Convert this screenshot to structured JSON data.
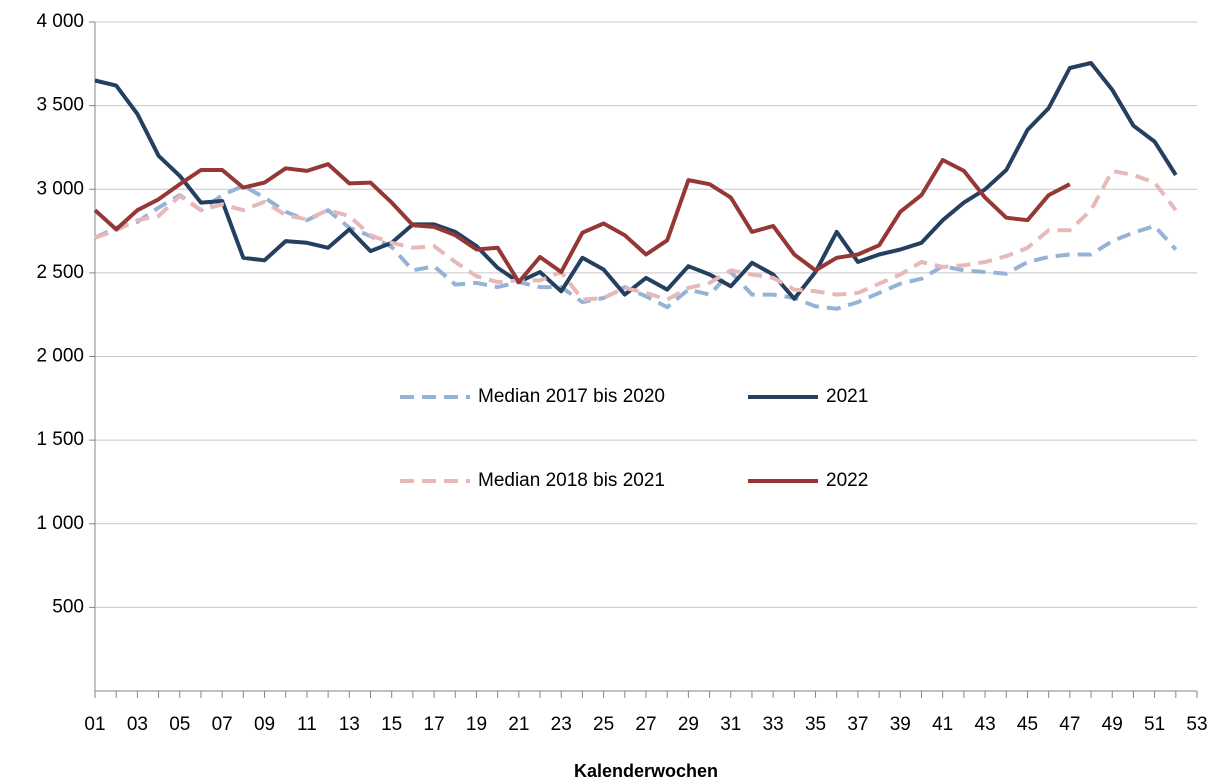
{
  "chart_data": {
    "type": "line",
    "x_label": "Kalenderwochen",
    "categories": [
      "01",
      null,
      "03",
      null,
      "05",
      null,
      "07",
      null,
      "09",
      null,
      "11",
      null,
      "13",
      null,
      "15",
      null,
      "17",
      null,
      "19",
      null,
      "21",
      null,
      "23",
      null,
      "25",
      null,
      "27",
      null,
      "29",
      null,
      "31",
      null,
      "33",
      null,
      "35",
      null,
      "37",
      null,
      "39",
      null,
      "41",
      null,
      "43",
      null,
      "45",
      null,
      "47",
      null,
      "49",
      null,
      "51",
      null,
      "53"
    ],
    "ylim": [
      0,
      4000
    ],
    "yticks": [
      500,
      {
        "value": 1000,
        "label": "1 000"
      },
      {
        "value": 1500,
        "label": "1 500"
      },
      {
        "value": 2000,
        "label": "2 000"
      },
      {
        "value": 2500,
        "label": "2 500"
      },
      {
        "value": 3000,
        "label": "3 000"
      },
      {
        "value": 3500,
        "label": "3 500"
      },
      {
        "value": 4000,
        "label": "4 000"
      }
    ],
    "grid": true,
    "legend": "center",
    "series": [
      {
        "name": "Median 2017 bis 2020",
        "color": "#95b3d7",
        "dashed": true,
        "values": [
          2710,
          2770,
          2805,
          2890,
          2965,
          2875,
          2965,
          3020,
          2950,
          2865,
          2815,
          2875,
          2770,
          2720,
          2655,
          2515,
          2540,
          2430,
          2440,
          2415,
          2445,
          2415,
          2415,
          2325,
          2350,
          2415,
          2360,
          2295,
          2400,
          2370,
          2505,
          2370,
          2370,
          2350,
          2300,
          2285,
          2325,
          2380,
          2435,
          2465,
          2540,
          2515,
          2505,
          2495,
          2565,
          2595,
          2610,
          2610,
          2690,
          2740,
          2780,
          2640,
          null
        ]
      },
      {
        "name": "2021",
        "color": "#243f60",
        "dashed": false,
        "values": [
          3650,
          3620,
          3450,
          3200,
          3080,
          2920,
          2930,
          2590,
          2575,
          2690,
          2680,
          2650,
          2760,
          2630,
          2680,
          2790,
          2790,
          2745,
          2660,
          2530,
          2445,
          2505,
          2390,
          2590,
          2520,
          2370,
          2470,
          2400,
          2540,
          2490,
          2420,
          2560,
          2490,
          2345,
          2505,
          2745,
          2565,
          2610,
          2640,
          2680,
          2815,
          2920,
          3000,
          3115,
          3355,
          3485,
          3725,
          3755,
          3595,
          3380,
          3285,
          3085,
          null
        ]
      },
      {
        "name": "Median 2018 bis 2021",
        "color": "#e6b9b8",
        "dashed": true,
        "values": [
          2710,
          2755,
          2815,
          2840,
          2960,
          2875,
          2910,
          2875,
          2925,
          2845,
          2820,
          2875,
          2840,
          2725,
          2680,
          2650,
          2660,
          2565,
          2480,
          2445,
          2455,
          2455,
          2505,
          2340,
          2350,
          2410,
          2380,
          2340,
          2410,
          2440,
          2515,
          2490,
          2470,
          2400,
          2390,
          2370,
          2380,
          2435,
          2490,
          2565,
          2535,
          2545,
          2565,
          2600,
          2650,
          2755,
          2755,
          2875,
          3110,
          3085,
          3040,
          2875,
          null
        ]
      },
      {
        "name": "2022",
        "color": "#953735",
        "dashed": false,
        "values": [
          2875,
          2760,
          2875,
          2940,
          3030,
          3115,
          3115,
          3010,
          3040,
          3125,
          3110,
          3150,
          3035,
          3040,
          2920,
          2785,
          2775,
          2725,
          2640,
          2650,
          2445,
          2595,
          2505,
          2740,
          2795,
          2725,
          2610,
          2695,
          3055,
          3030,
          2950,
          2745,
          2780,
          2610,
          2515,
          2590,
          2610,
          2665,
          2865,
          2965,
          3175,
          3110,
          2950,
          2830,
          2815,
          2965,
          3030,
          null,
          null,
          null,
          null,
          null,
          null
        ]
      }
    ]
  }
}
